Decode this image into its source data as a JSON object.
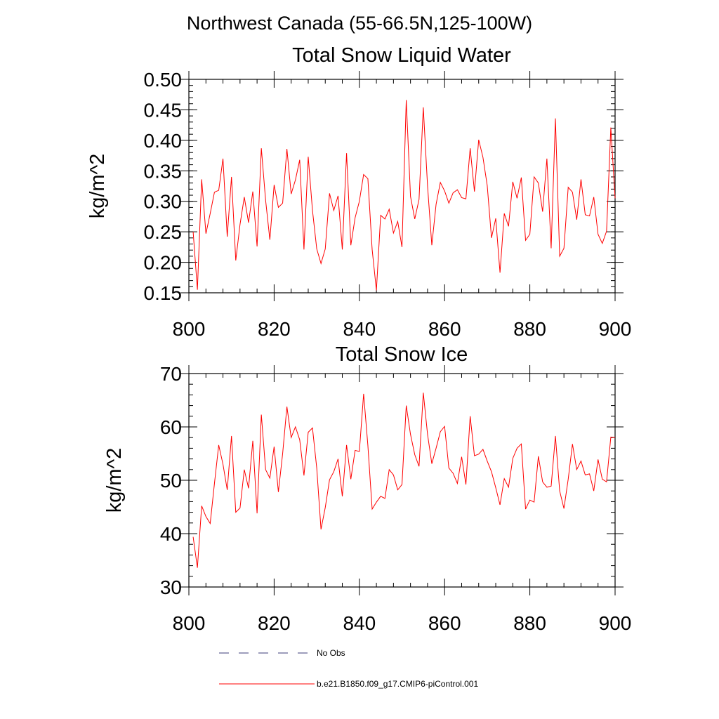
{
  "suptitle": "Northwest Canada (55-66.5N,125-100W)",
  "legend": {
    "entries": [
      {
        "label": "No Obs",
        "style": "dashed",
        "color": "#3b3b7a"
      },
      {
        "label": "b.e21.B1850.f09_g17.CMIP6-piControl.001",
        "style": "solid",
        "color": "#ff0000"
      }
    ]
  },
  "chart_data": [
    {
      "type": "line",
      "title": "Total Snow Liquid Water",
      "xlabel": "",
      "ylabel": "kg/m^2",
      "xlim": [
        800,
        900
      ],
      "ylim": [
        0.15,
        0.5
      ],
      "xticks": [
        "800",
        "820",
        "840",
        "860",
        "880",
        "900"
      ],
      "yticks": [
        "0.15",
        "0.20",
        "0.25",
        "0.30",
        "0.35",
        "0.40",
        "0.45",
        "0.50"
      ],
      "grid": false,
      "x_start": 801,
      "x_step": 1,
      "series": [
        {
          "name": "b.e21.B1850.f09_g17.CMIP6-piControl.001",
          "color": "#ff0000",
          "values": [
            0.25,
            0.155,
            0.336,
            0.247,
            0.28,
            0.315,
            0.318,
            0.37,
            0.242,
            0.34,
            0.203,
            0.262,
            0.307,
            0.265,
            0.316,
            0.226,
            0.387,
            0.302,
            0.237,
            0.327,
            0.29,
            0.297,
            0.386,
            0.312,
            0.335,
            0.368,
            0.221,
            0.373,
            0.285,
            0.222,
            0.198,
            0.222,
            0.313,
            0.285,
            0.309,
            0.221,
            0.379,
            0.228,
            0.273,
            0.3,
            0.344,
            0.337,
            0.221,
            0.154,
            0.277,
            0.271,
            0.287,
            0.248,
            0.267,
            0.225,
            0.466,
            0.308,
            0.271,
            0.303,
            0.454,
            0.325,
            0.228,
            0.295,
            0.331,
            0.317,
            0.297,
            0.314,
            0.319,
            0.306,
            0.304,
            0.387,
            0.316,
            0.401,
            0.372,
            0.326,
            0.24,
            0.272,
            0.183,
            0.28,
            0.259,
            0.332,
            0.305,
            0.339,
            0.236,
            0.246,
            0.34,
            0.33,
            0.283,
            0.37,
            0.223,
            0.436,
            0.21,
            0.223,
            0.323,
            0.315,
            0.27,
            0.336,
            0.278,
            0.276,
            0.307,
            0.246,
            0.231,
            0.251,
            0.421,
            0.305
          ]
        }
      ]
    },
    {
      "type": "line",
      "title": "Total Snow Ice",
      "xlabel": "",
      "ylabel": "kg/m^2",
      "xlim": [
        800,
        900
      ],
      "ylim": [
        30,
        70
      ],
      "xticks": [
        "800",
        "820",
        "840",
        "860",
        "880",
        "900"
      ],
      "yticks": [
        "30",
        "40",
        "50",
        "60",
        "70"
      ],
      "grid": false,
      "x_start": 801,
      "x_step": 1,
      "series": [
        {
          "name": "b.e21.B1850.f09_g17.CMIP6-piControl.001",
          "color": "#ff0000",
          "values": [
            39.4,
            33.6,
            45.2,
            43.2,
            41.9,
            49.4,
            56.6,
            53.0,
            48.2,
            58.3,
            44.0,
            44.8,
            52.0,
            48.5,
            57.4,
            43.8,
            62.3,
            52.0,
            50.4,
            56.3,
            47.8,
            55.0,
            63.8,
            58.0,
            60.0,
            57.6,
            50.9,
            59.0,
            59.8,
            52.3,
            40.8,
            44.9,
            50.1,
            51.6,
            54.0,
            47.0,
            56.6,
            50.2,
            55.6,
            55.4,
            66.2,
            56.5,
            44.6,
            45.9,
            47.0,
            46.6,
            52.0,
            51.0,
            48.2,
            49.2,
            64.0,
            58.6,
            54.8,
            52.6,
            66.4,
            58.6,
            53.1,
            56.0,
            59.1,
            60.1,
            52.3,
            51.3,
            49.4,
            54.4,
            49.2,
            62.0,
            54.6,
            54.9,
            55.8,
            53.6,
            51.6,
            48.6,
            45.4,
            50.3,
            48.7,
            54.1,
            56.0,
            56.8,
            44.6,
            46.3,
            45.9,
            54.5,
            49.7,
            48.7,
            48.9,
            58.3,
            48.0,
            44.7,
            50.2,
            56.8,
            52.0,
            53.6,
            51.0,
            51.2,
            48.0,
            53.9,
            50.2,
            49.7,
            58.1,
            58.0
          ]
        }
      ]
    }
  ]
}
